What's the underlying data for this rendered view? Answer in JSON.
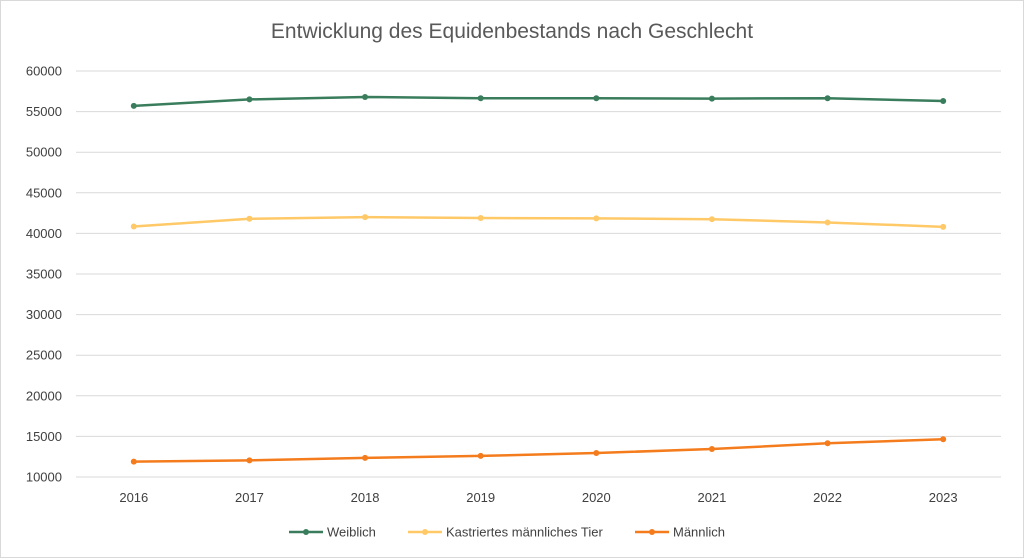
{
  "chart_data": {
    "type": "line",
    "title": "Entwicklung des Equidenbestands nach Geschlecht",
    "xlabel": "",
    "ylabel": "",
    "categories": [
      "2016",
      "2017",
      "2018",
      "2019",
      "2020",
      "2021",
      "2022",
      "2023"
    ],
    "ylim": [
      10000,
      60000
    ],
    "yticks": [
      10000,
      15000,
      20000,
      25000,
      30000,
      35000,
      40000,
      45000,
      50000,
      55000,
      60000
    ],
    "grid": true,
    "legend_position": "bottom",
    "series": [
      {
        "name": "Weiblich",
        "color": "#3a7d5c",
        "values": [
          55700,
          56500,
          56800,
          56650,
          56650,
          56600,
          56650,
          56300
        ]
      },
      {
        "name": "Kastriertes männliches Tier",
        "color": "#ffc968",
        "values": [
          40850,
          41800,
          42000,
          41900,
          41850,
          41750,
          41350,
          40800
        ]
      },
      {
        "name": "Männlich",
        "color": "#f47c1c",
        "values": [
          11900,
          12050,
          12350,
          12600,
          12950,
          13450,
          14150,
          14650
        ]
      }
    ]
  }
}
